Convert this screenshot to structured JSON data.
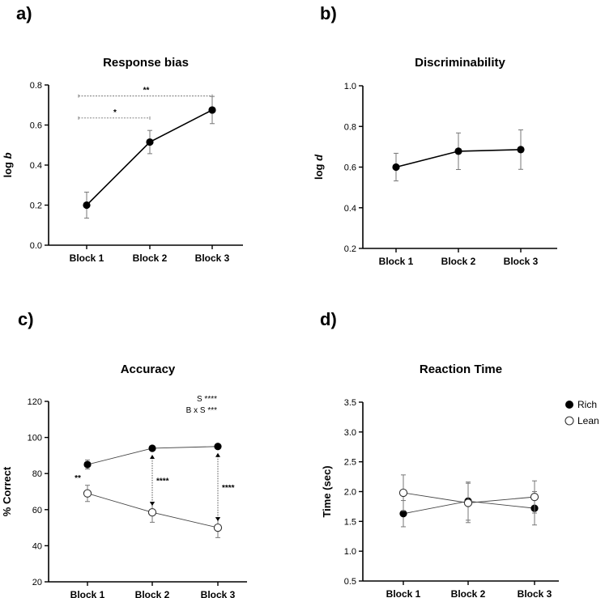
{
  "panels": {
    "a": {
      "letter": "a)"
    },
    "b": {
      "letter": "b)"
    },
    "c": {
      "letter": "c)"
    },
    "d": {
      "letter": "d)"
    }
  },
  "chart_data": [
    {
      "id": "a",
      "type": "line",
      "title": "Response bias",
      "ylabel": "log b",
      "ylabel_main": "log ",
      "ylabel_italic": "b",
      "xlabel": "",
      "categories": [
        "Block 1",
        "Block 2",
        "Block 3"
      ],
      "ylim": [
        0.0,
        0.8
      ],
      "yticks": [
        0.0,
        0.2,
        0.4,
        0.6,
        0.8
      ],
      "ytick_labels": [
        "0.0",
        "0.2",
        "0.4",
        "0.6",
        "0.8"
      ],
      "series": [
        {
          "name": "Response bias",
          "marker": "filled",
          "values": [
            0.2,
            0.515,
            0.675
          ],
          "err": [
            0.065,
            0.058,
            0.068
          ]
        }
      ],
      "significance": [
        {
          "from": 0,
          "to": 2,
          "label": "**",
          "y": 0.745
        },
        {
          "from": 0,
          "to": 1,
          "label": "*",
          "y": 0.635
        }
      ]
    },
    {
      "id": "b",
      "type": "line",
      "title": "Discriminability",
      "ylabel": "log d",
      "ylabel_main": "log ",
      "ylabel_italic": "d",
      "xlabel": "",
      "categories": [
        "Block 1",
        "Block 2",
        "Block 3"
      ],
      "ylim": [
        0.2,
        1.0
      ],
      "yticks": [
        0.2,
        0.4,
        0.6,
        0.8,
        1.0
      ],
      "ytick_labels": [
        "0.2",
        "0.4",
        "0.6",
        "0.8",
        "1.0"
      ],
      "series": [
        {
          "name": "Discriminability",
          "marker": "filled",
          "values": [
            0.6,
            0.678,
            0.686
          ],
          "err": [
            0.068,
            0.09,
            0.097
          ]
        }
      ],
      "significance": []
    },
    {
      "id": "c",
      "type": "line",
      "title": "Accuracy",
      "ylabel": "% Correct",
      "xlabel": "",
      "categories": [
        "Block 1",
        "Block 2",
        "Block 3"
      ],
      "ylim": [
        20,
        120
      ],
      "yticks": [
        20,
        40,
        60,
        80,
        100,
        120
      ],
      "ytick_labels": [
        "20",
        "40",
        "60",
        "80",
        "100",
        "120"
      ],
      "series": [
        {
          "name": "Rich",
          "marker": "filled",
          "values": [
            85,
            94,
            95
          ],
          "err": [
            2.5,
            1.0,
            1.0
          ]
        },
        {
          "name": "Lean",
          "marker": "open",
          "values": [
            69,
            58.5,
            50
          ],
          "err": [
            4.5,
            5.5,
            5.5
          ]
        }
      ],
      "annotations": [
        {
          "text": "S ****",
          "position": "top-right"
        },
        {
          "text": "B x S  ***",
          "position": "top-right"
        }
      ],
      "pairwise": [
        {
          "category": 0,
          "label": "**"
        },
        {
          "category": 1,
          "label": "****"
        },
        {
          "category": 2,
          "label": "****"
        }
      ]
    },
    {
      "id": "d",
      "type": "line",
      "title": "Reaction Time",
      "ylabel": "Time (sec)",
      "xlabel": "",
      "categories": [
        "Block 1",
        "Block 2",
        "Block 3"
      ],
      "ylim": [
        0.5,
        3.5
      ],
      "yticks": [
        0.5,
        1.0,
        1.5,
        2.0,
        2.5,
        3.0,
        3.5
      ],
      "ytick_labels": [
        "0.5",
        "1.0",
        "1.5",
        "2.0",
        "2.5",
        "3.0",
        "3.5"
      ],
      "legend": "top-right",
      "series": [
        {
          "name": "Rich",
          "marker": "filled",
          "values": [
            1.63,
            1.84,
            1.72
          ],
          "err": [
            0.22,
            0.32,
            0.28
          ]
        },
        {
          "name": "Lean",
          "marker": "open",
          "values": [
            1.98,
            1.81,
            1.91
          ],
          "err": [
            0.3,
            0.33,
            0.27
          ]
        }
      ]
    }
  ]
}
